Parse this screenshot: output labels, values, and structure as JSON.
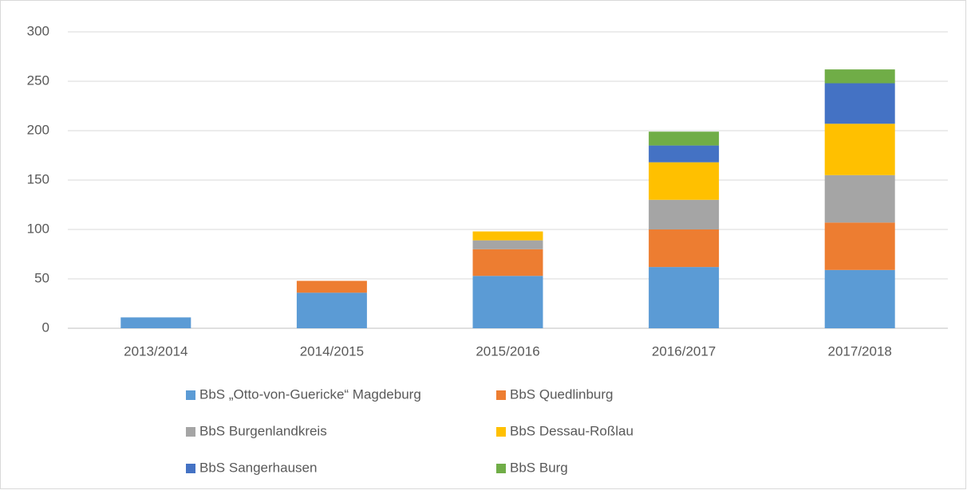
{
  "chart_data": {
    "type": "stacked_bar",
    "categories": [
      "2013/2014",
      "2014/2015",
      "2015/2016",
      "2016/2017",
      "2017/2018"
    ],
    "series": [
      {
        "name": "BbS „Otto-von-Guericke“ Magdeburg",
        "color": "#5b9bd5",
        "values": [
          11,
          36,
          53,
          62,
          59
        ]
      },
      {
        "name": "BbS Quedlinburg",
        "color": "#ed7d31",
        "values": [
          0,
          12,
          27,
          38,
          48
        ]
      },
      {
        "name": "BbS Burgenlandkreis",
        "color": "#a5a5a5",
        "values": [
          0,
          0,
          9,
          30,
          48
        ]
      },
      {
        "name": "BbS Dessau-Roßlau",
        "color": "#ffc000",
        "values": [
          0,
          0,
          9,
          38,
          52
        ]
      },
      {
        "name": "BbS Sangerhausen",
        "color": "#4472c4",
        "values": [
          0,
          0,
          0,
          17,
          41
        ]
      },
      {
        "name": "BbS Burg",
        "color": "#70ad47",
        "values": [
          0,
          0,
          0,
          14,
          14
        ]
      }
    ],
    "ylim": [
      0,
      300
    ],
    "yticks": [
      0,
      50,
      100,
      150,
      200,
      250,
      300
    ],
    "grid": true,
    "legend": "bottom"
  }
}
